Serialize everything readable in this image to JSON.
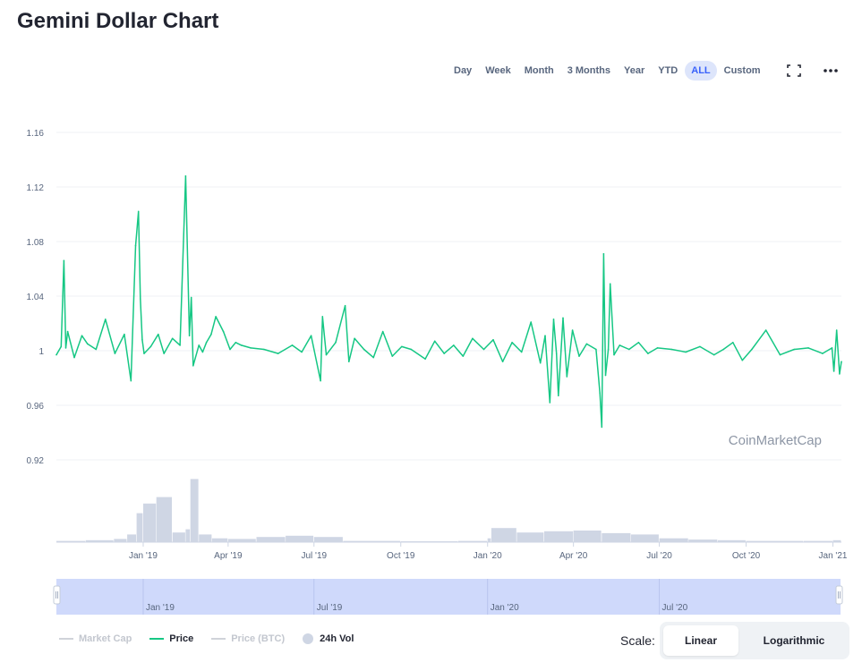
{
  "title": "Gemini Dollar Chart",
  "range_buttons": [
    "Day",
    "Week",
    "Month",
    "3 Months",
    "Year",
    "YTD",
    "ALL",
    "Custom"
  ],
  "active_range": "ALL",
  "icons": {
    "fullscreen": "fullscreen-icon",
    "more": "more-horizontal-icon"
  },
  "watermark": "CoinMarketCap",
  "legend": [
    {
      "label": "Market Cap",
      "color": "#d0d3d9",
      "style": "line"
    },
    {
      "label": "Price",
      "color": "#16c784",
      "style": "line"
    },
    {
      "label": "Price (BTC)",
      "color": "#d0d3d9",
      "style": "line"
    },
    {
      "label": "24h Vol",
      "color": "#cfd6e4",
      "style": "dot"
    }
  ],
  "scale": {
    "label": "Scale:",
    "options": [
      "Linear",
      "Logarithmic"
    ],
    "active": "Linear"
  },
  "chart_data": {
    "type": "line",
    "title": "Gemini Dollar Chart",
    "y_ticks": [
      "1.16",
      "1.12",
      "1.08",
      "1.04",
      "1",
      "0.96",
      "0.92"
    ],
    "ylim": [
      0.92,
      1.16
    ],
    "x_ticks": [
      "Jan '19",
      "Apr '19",
      "Jul '19",
      "Oct '19",
      "Jan '20",
      "Apr '20",
      "Jul '20",
      "Oct '20",
      "Jan '21"
    ],
    "navigator_ticks": [
      "Jan '19",
      "Jul '19",
      "Jan '20",
      "Jul '20"
    ],
    "grid": true,
    "legend_position": "bottom-left",
    "series": [
      {
        "name": "Price",
        "color": "#16c784",
        "x": [
          "2018-10-01",
          "2018-10-06",
          "2018-10-09",
          "2018-10-11",
          "2018-10-13",
          "2018-10-20",
          "2018-10-28",
          "2018-11-03",
          "2018-11-12",
          "2018-11-22",
          "2018-12-02",
          "2018-12-12",
          "2018-12-19",
          "2018-12-24",
          "2018-12-27",
          "2018-12-29",
          "2018-12-31",
          "2019-01-02",
          "2019-01-09",
          "2019-01-17",
          "2019-01-23",
          "2019-02-01",
          "2019-02-09",
          "2019-02-15",
          "2019-02-19",
          "2019-02-21",
          "2019-02-23",
          "2019-03-01",
          "2019-03-05",
          "2019-03-09",
          "2019-03-14",
          "2019-03-19",
          "2019-03-27",
          "2019-04-03",
          "2019-04-09",
          "2019-04-15",
          "2019-04-25",
          "2019-05-09",
          "2019-05-24",
          "2019-06-08",
          "2019-06-18",
          "2019-06-28",
          "2019-07-08",
          "2019-07-10",
          "2019-07-14",
          "2019-07-24",
          "2019-08-03",
          "2019-08-07",
          "2019-08-13",
          "2019-08-23",
          "2019-09-02",
          "2019-09-12",
          "2019-09-22",
          "2019-10-02",
          "2019-10-12",
          "2019-10-27",
          "2019-11-06",
          "2019-11-16",
          "2019-11-26",
          "2019-12-06",
          "2019-12-16",
          "2019-12-28",
          "2020-01-07",
          "2020-01-17",
          "2020-01-27",
          "2020-02-06",
          "2020-02-16",
          "2020-02-26",
          "2020-03-02",
          "2020-03-07",
          "2020-03-11",
          "2020-03-14",
          "2020-03-16",
          "2020-03-21",
          "2020-03-25",
          "2020-03-31",
          "2020-04-07",
          "2020-04-15",
          "2020-04-25",
          "2020-04-29",
          "2020-05-01",
          "2020-05-03",
          "2020-05-05",
          "2020-05-08",
          "2020-05-10",
          "2020-05-14",
          "2020-05-20",
          "2020-05-30",
          "2020-06-09",
          "2020-06-19",
          "2020-06-29",
          "2020-07-14",
          "2020-07-29",
          "2020-08-13",
          "2020-08-28",
          "2020-09-07",
          "2020-09-17",
          "2020-09-27",
          "2020-10-07",
          "2020-10-22",
          "2020-11-06",
          "2020-11-21",
          "2020-12-06",
          "2020-12-21",
          "2020-12-31",
          "2021-01-02",
          "2021-01-05",
          "2021-01-08",
          "2021-01-10"
        ],
        "values": [
          0.997,
          1.003,
          1.066,
          1.002,
          1.014,
          0.995,
          1.011,
          1.005,
          1.001,
          1.023,
          0.998,
          1.012,
          0.978,
          1.077,
          1.102,
          1.038,
          1.008,
          0.998,
          1.003,
          1.012,
          0.998,
          1.009,
          1.004,
          1.128,
          1.011,
          1.039,
          0.989,
          1.004,
          0.999,
          1.006,
          1.012,
          1.025,
          1.014,
          1.001,
          1.006,
          1.004,
          1.002,
          1.001,
          0.998,
          1.004,
          0.999,
          1.011,
          0.978,
          1.025,
          0.997,
          1.006,
          1.033,
          0.992,
          1.009,
          1.001,
          0.995,
          1.014,
          0.996,
          1.003,
          1.001,
          0.994,
          1.007,
          0.998,
          1.004,
          0.996,
          1.009,
          1.001,
          1.008,
          0.992,
          1.006,
          0.999,
          1.021,
          0.991,
          1.011,
          0.962,
          1.023,
          0.998,
          0.967,
          1.024,
          0.981,
          1.015,
          0.996,
          1.005,
          1.001,
          0.969,
          0.944,
          1.071,
          0.982,
          1.001,
          1.049,
          0.997,
          1.004,
          1.001,
          1.006,
          0.998,
          1.002,
          1.001,
          0.999,
          1.003,
          0.997,
          1.001,
          1.006,
          0.993,
          1.001,
          1.015,
          0.997,
          1.001,
          1.002,
          0.998,
          1.002,
          0.985,
          1.015,
          0.983,
          0.992
        ]
      },
      {
        "name": "24h Vol",
        "color": "#cfd6e4",
        "x": [
          "2018-10-01",
          "2018-11-01",
          "2018-12-01",
          "2018-12-15",
          "2018-12-25",
          "2019-01-01",
          "2019-01-15",
          "2019-02-01",
          "2019-02-15",
          "2019-02-20",
          "2019-03-01",
          "2019-03-15",
          "2019-04-01",
          "2019-05-01",
          "2019-06-01",
          "2019-07-01",
          "2019-08-01",
          "2019-10-01",
          "2019-12-01",
          "2020-01-01",
          "2020-01-05",
          "2020-02-01",
          "2020-03-01",
          "2020-04-01",
          "2020-05-01",
          "2020-06-01",
          "2020-07-01",
          "2020-08-01",
          "2020-09-01",
          "2020-10-01",
          "2020-12-01",
          "2021-01-01",
          "2021-01-10"
        ],
        "values": [
          0.02,
          0.03,
          0.05,
          0.12,
          0.45,
          0.6,
          0.7,
          0.15,
          0.2,
          0.98,
          0.12,
          0.06,
          0.05,
          0.08,
          0.1,
          0.08,
          0.02,
          0.01,
          0.02,
          0.06,
          0.22,
          0.15,
          0.17,
          0.18,
          0.14,
          0.12,
          0.06,
          0.04,
          0.03,
          0.02,
          0.02,
          0.03,
          0.02
        ]
      }
    ]
  }
}
